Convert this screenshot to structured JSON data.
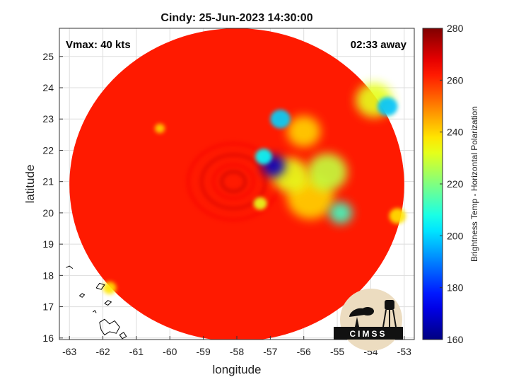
{
  "chart_data": {
    "type": "heatmap",
    "title": "Cindy: 25-Jun-2023 14:30:00",
    "xlabel": "longitude",
    "ylabel": "latitude",
    "xlim": [
      -63.3,
      -52.7
    ],
    "ylim": [
      15.95,
      25.9
    ],
    "xticks": [
      -63,
      -62,
      -61,
      -60,
      -59,
      -58,
      -57,
      -56,
      -55,
      -54,
      -53
    ],
    "yticks": [
      16,
      17,
      18,
      19,
      20,
      21,
      22,
      23,
      24,
      25
    ],
    "grid": true,
    "annotations": {
      "top_left": "Vmax: 40 kts",
      "top_right": "02:33 away"
    },
    "colorbar": {
      "label": "Brightness Temp - Horizontal Polarization",
      "min": 160,
      "max": 280,
      "ticks": [
        160,
        180,
        200,
        220,
        240,
        260,
        280
      ],
      "colormap": "jet"
    },
    "swath": {
      "center_lon": -58.0,
      "center_lat": 20.9,
      "radius_deg": 5.0,
      "background_value": 262
    },
    "features": [
      {
        "lon": -56.9,
        "lat": 21.5,
        "radius": 0.35,
        "value": 168
      },
      {
        "lon": -57.2,
        "lat": 21.8,
        "radius": 0.25,
        "value": 205
      },
      {
        "lon": -56.4,
        "lat": 21.2,
        "radius": 0.55,
        "value": 232
      },
      {
        "lon": -55.3,
        "lat": 21.3,
        "radius": 0.6,
        "value": 228
      },
      {
        "lon": -54.9,
        "lat": 20.0,
        "radius": 0.35,
        "value": 212
      },
      {
        "lon": -55.8,
        "lat": 20.5,
        "radius": 0.7,
        "value": 240
      },
      {
        "lon": -53.5,
        "lat": 23.4,
        "radius": 0.3,
        "value": 198
      },
      {
        "lon": -53.9,
        "lat": 23.6,
        "radius": 0.55,
        "value": 232
      },
      {
        "lon": -56.7,
        "lat": 23.0,
        "radius": 0.3,
        "value": 200
      },
      {
        "lon": -56.0,
        "lat": 22.6,
        "radius": 0.5,
        "value": 240
      },
      {
        "lon": -57.3,
        "lat": 20.3,
        "radius": 0.2,
        "value": 232
      },
      {
        "lon": -53.2,
        "lat": 19.9,
        "radius": 0.25,
        "value": 238
      },
      {
        "lon": -61.8,
        "lat": 17.6,
        "radius": 0.2,
        "value": 238
      },
      {
        "lon": -60.3,
        "lat": 22.7,
        "radius": 0.15,
        "value": 240
      }
    ],
    "coastlines": [
      [
        [
          -62.2,
          17.6
        ],
        [
          -62.1,
          17.75
        ],
        [
          -61.95,
          17.7
        ],
        [
          -62.05,
          17.55
        ],
        [
          -62.2,
          17.6
        ]
      ],
      [
        [
          -61.95,
          17.1
        ],
        [
          -61.85,
          17.2
        ],
        [
          -61.75,
          17.15
        ],
        [
          -61.85,
          17.05
        ],
        [
          -61.95,
          17.1
        ]
      ],
      [
        [
          -62.7,
          17.35
        ],
        [
          -62.62,
          17.42
        ],
        [
          -62.55,
          17.38
        ],
        [
          -62.62,
          17.3
        ],
        [
          -62.7,
          17.35
        ]
      ],
      [
        [
          -62.1,
          16.5
        ],
        [
          -61.95,
          16.6
        ],
        [
          -61.8,
          16.45
        ],
        [
          -61.65,
          16.55
        ],
        [
          -61.5,
          16.35
        ],
        [
          -61.6,
          16.15
        ],
        [
          -61.8,
          16.2
        ],
        [
          -61.95,
          16.1
        ],
        [
          -62.05,
          16.25
        ],
        [
          -62.1,
          16.5
        ]
      ],
      [
        [
          -61.5,
          16.1
        ],
        [
          -61.38,
          16.18
        ],
        [
          -61.3,
          16.05
        ],
        [
          -61.42,
          15.98
        ],
        [
          -61.5,
          16.1
        ]
      ],
      [
        [
          -63.1,
          18.25
        ],
        [
          -63.0,
          18.3
        ],
        [
          -62.9,
          18.22
        ]
      ],
      [
        [
          -62.3,
          16.83
        ],
        [
          -62.24,
          16.88
        ],
        [
          -62.2,
          16.8
        ]
      ]
    ],
    "logo_text": "CIMSS"
  }
}
